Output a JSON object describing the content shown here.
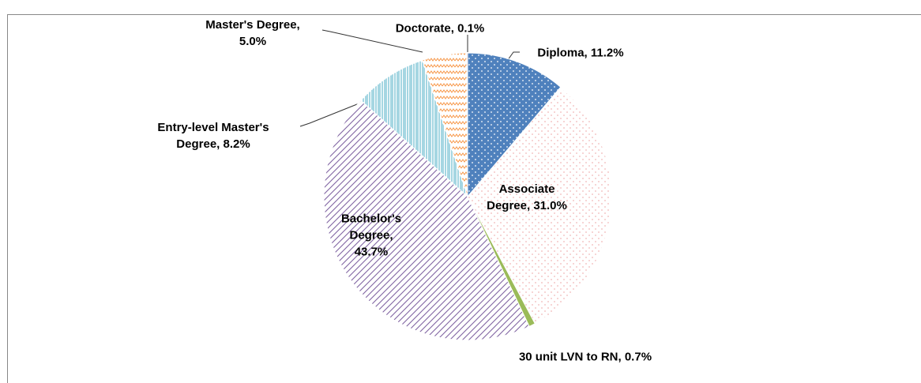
{
  "chart_data": {
    "type": "pie",
    "categories": [
      "Diploma,",
      "Associate Degree,",
      "30 unit LVN to RN,",
      "Bachelor's Degree,",
      "Entry-level Master's Degree,",
      "Master's Degree,",
      "Doctorate,"
    ],
    "values": [
      11.2,
      31.0,
      0.7,
      43.7,
      8.2,
      5.0,
      0.1
    ],
    "value_labels": [
      "11.2%",
      "31.0%",
      "0.7%",
      "43.7%",
      "8.2%",
      "5.0%",
      "0.1%"
    ],
    "colors": [
      "#4f81bd",
      "#e46c6c",
      "#9bbb59",
      "#8064a2",
      "#4bacc6",
      "#f79646",
      "#c0504d"
    ]
  }
}
